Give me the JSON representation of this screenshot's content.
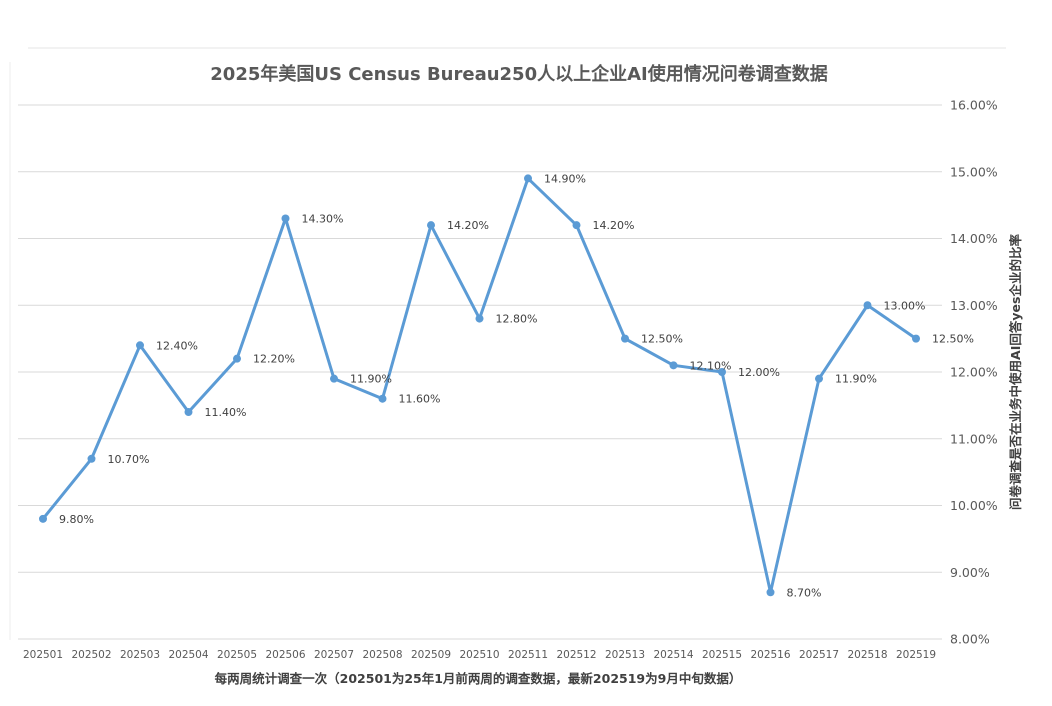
{
  "chart_data": {
    "type": "line",
    "title": "2025年美国US Census Bureau250人以上企业AI使用情况问卷调查数据",
    "xlabel": "每两周统计调查一次（202501为25年1月前两周的调查数据，最新202519为9月中旬数据）",
    "ylabel": "问卷调查是否在业务中使用AI回答yes企业的比率",
    "categories": [
      "202501",
      "202502",
      "202503",
      "202504",
      "202505",
      "202506",
      "202507",
      "202508",
      "202509",
      "202510",
      "202511",
      "202512",
      "202513",
      "202514",
      "202515",
      "202516",
      "202517",
      "202518",
      "202519"
    ],
    "series": [
      {
        "values": [
          9.8,
          10.7,
          12.4,
          11.4,
          12.2,
          14.3,
          11.9,
          11.6,
          14.2,
          12.8,
          14.9,
          14.2,
          12.5,
          12.1,
          12.0,
          8.7,
          11.9,
          13.0,
          12.5
        ],
        "labels": [
          "9.80%",
          "10.70%",
          "12.40%",
          "11.40%",
          "12.20%",
          "14.30%",
          "11.90%",
          "11.60%",
          "14.20%",
          "12.80%",
          "14.90%",
          "14.20%",
          "12.50%",
          "12.10%",
          "12.00%",
          "8.70%",
          "11.90%",
          "13.00%",
          "12.50%"
        ],
        "color": "#5b9bd5"
      }
    ],
    "ylim": [
      8,
      16
    ],
    "yticks": [
      8,
      9,
      10,
      11,
      12,
      13,
      14,
      15,
      16
    ],
    "ytick_labels": [
      "8.00%",
      "9.00%",
      "10.00%",
      "11.00%",
      "12.00%",
      "13.00%",
      "14.00%",
      "15.00%",
      "16.00%"
    ],
    "y_axis_side": "right",
    "grid": true,
    "legend": "none"
  }
}
